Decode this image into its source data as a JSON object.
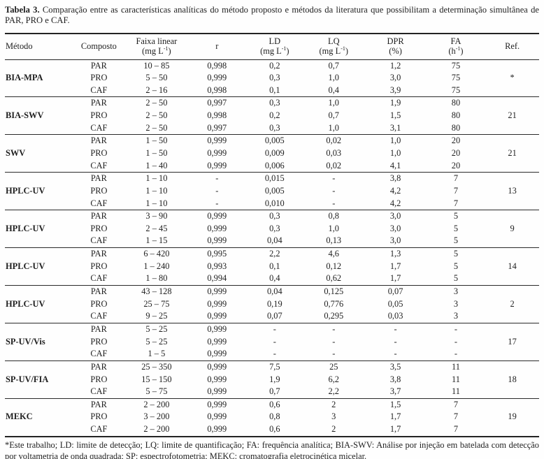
{
  "caption": {
    "number": "Tabela 3.",
    "text": "Comparação entre as características analíticas do método proposto e métodos da literatura que possibilitam a determinação simultânea de PAR, PRO e CAF."
  },
  "table": {
    "columns": [
      {
        "label": "Método"
      },
      {
        "label": "Composto"
      },
      {
        "label": "Faixa linear",
        "unit": "(mg L",
        "unit_sup": "-1",
        "unit_end": ")"
      },
      {
        "label": "r"
      },
      {
        "label": "LD",
        "unit": "(mg L",
        "unit_sup": "-1",
        "unit_end": ")"
      },
      {
        "label": "LQ",
        "unit": "(mg L",
        "unit_sup": "-1",
        "unit_end": ")"
      },
      {
        "label": "DPR",
        "unit": "(%)"
      },
      {
        "label": "FA",
        "unit": "(h",
        "unit_sup": "-1",
        "unit_end": ")"
      },
      {
        "label": "Ref."
      }
    ],
    "groups": [
      {
        "method": "BIA-MPA",
        "ref": "*",
        "rows": [
          [
            "PAR",
            "10 – 85",
            "0,998",
            "0,2",
            "0,7",
            "1,2",
            "75"
          ],
          [
            "PRO",
            "5 – 50",
            "0,999",
            "0,3",
            "1,0",
            "3,0",
            "75"
          ],
          [
            "CAF",
            "2 – 16",
            "0,998",
            "0,1",
            "0,4",
            "3,9",
            "75"
          ]
        ]
      },
      {
        "method": "BIA-SWV",
        "ref": "21",
        "rows": [
          [
            "PAR",
            "2 – 50",
            "0,997",
            "0,3",
            "1,0",
            "1,9",
            "80"
          ],
          [
            "PRO",
            "2 – 50",
            "0,998",
            "0,2",
            "0,7",
            "1,5",
            "80"
          ],
          [
            "CAF",
            "2 – 50",
            "0,997",
            "0,3",
            "1,0",
            "3,1",
            "80"
          ]
        ]
      },
      {
        "method": "SWV",
        "ref": "21",
        "rows": [
          [
            "PAR",
            "1 – 50",
            "0,999",
            "0,005",
            "0,02",
            "1,0",
            "20"
          ],
          [
            "PRO",
            "1 – 50",
            "0,999",
            "0,009",
            "0,03",
            "1,0",
            "20"
          ],
          [
            "CAF",
            "1 – 40",
            "0,999",
            "0,006",
            "0,02",
            "4,1",
            "20"
          ]
        ]
      },
      {
        "method": "HPLC-UV",
        "ref": "13",
        "rows": [
          [
            "PAR",
            "1 – 10",
            "-",
            "0,015",
            "-",
            "3,8",
            "7"
          ],
          [
            "PRO",
            "1 – 10",
            "-",
            "0,005",
            "-",
            "4,2",
            "7"
          ],
          [
            "CAF",
            "1 – 10",
            "-",
            "0,010",
            "-",
            "4,2",
            "7"
          ]
        ]
      },
      {
        "method": "HPLC-UV",
        "ref": "9",
        "rows": [
          [
            "PAR",
            "3 – 90",
            "0,999",
            "0,3",
            "0,8",
            "3,0",
            "5"
          ],
          [
            "PRO",
            "2 – 45",
            "0,999",
            "0,3",
            "1,0",
            "3,0",
            "5"
          ],
          [
            "CAF",
            "1 – 15",
            "0,999",
            "0,04",
            "0,13",
            "3,0",
            "5"
          ]
        ]
      },
      {
        "method": "HPLC-UV",
        "ref": "14",
        "rows": [
          [
            "PAR",
            "6 – 420",
            "0,995",
            "2,2",
            "4,6",
            "1,3",
            "5"
          ],
          [
            "PRO",
            "1 – 240",
            "0,993",
            "0,1",
            "0,12",
            "1,7",
            "5"
          ],
          [
            "CAF",
            "1 – 80",
            "0,994",
            "0,4",
            "0,62",
            "1,7",
            "5"
          ]
        ]
      },
      {
        "method": "HPLC-UV",
        "ref": "2",
        "rows": [
          [
            "PAR",
            "43 – 128",
            "0,999",
            "0,04",
            "0,125",
            "0,07",
            "3"
          ],
          [
            "PRO",
            "25 – 75",
            "0,999",
            "0,19",
            "0,776",
            "0,05",
            "3"
          ],
          [
            "CAF",
            "9 – 25",
            "0,999",
            "0,07",
            "0,295",
            "0,03",
            "3"
          ]
        ]
      },
      {
        "method": "SP-UV/Vis",
        "ref": "17",
        "rows": [
          [
            "PAR",
            "5 – 25",
            "0,999",
            "-",
            "-",
            "-",
            "-"
          ],
          [
            "PRO",
            "5 – 25",
            "0,999",
            "-",
            "-",
            "-",
            "-"
          ],
          [
            "CAF",
            "1 – 5",
            "0,999",
            "-",
            "-",
            "-",
            "-"
          ]
        ]
      },
      {
        "method": "SP-UV/FIA",
        "ref": "18",
        "rows": [
          [
            "PAR",
            "25 – 350",
            "0,999",
            "7,5",
            "25",
            "3,5",
            "11"
          ],
          [
            "PRO",
            "15 – 150",
            "0,999",
            "1,9",
            "6,2",
            "3,8",
            "11"
          ],
          [
            "CAF",
            "5 – 75",
            "0,999",
            "0,7",
            "2,2",
            "3,7",
            "11"
          ]
        ]
      },
      {
        "method": "MEKC",
        "ref": "19",
        "rows": [
          [
            "PAR",
            "2 – 200",
            "0,999",
            "0,6",
            "2",
            "1,5",
            "7"
          ],
          [
            "PRO",
            "3 – 200",
            "0,999",
            "0,8",
            "3",
            "1,7",
            "7"
          ],
          [
            "CAF",
            "2 – 200",
            "0,999",
            "0,6",
            "2",
            "1,7",
            "7"
          ]
        ]
      }
    ]
  },
  "footnote": "*Este trabalho; LD: limite de detecção; LQ: limite de quantificação; FA: frequência analítica; BIA-SWV: Análise por injeção em batelada com detecção por voltametria de onda quadrada; SP: espectrofotometria; MEKC: cromatografia eletrocinética micelar.",
  "colors": {
    "text": "#1f1f1f",
    "rule": "#232323",
    "background": "#fefefe"
  }
}
